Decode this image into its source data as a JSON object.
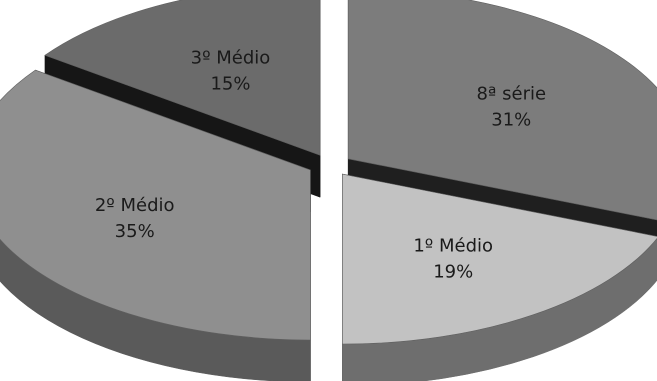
{
  "chart_data": {
    "type": "pie",
    "style": "3d exploded pie",
    "slices": [
      {
        "label": "8ª série",
        "value": 31,
        "percent_text": "31%",
        "color": "#7c7c7c",
        "side_color": "#4a4a4a",
        "inner_color": "#1f1f1f"
      },
      {
        "label": "1º Médio",
        "value": 19,
        "percent_text": "19%",
        "color": "#c2c2c2",
        "side_color": "#6e6e6e",
        "inner_color": "#2c2c2c"
      },
      {
        "label": "2º Médio",
        "value": 35,
        "percent_text": "35%",
        "color": "#8f8f8f",
        "side_color": "#5a5a5a",
        "inner_color": "#2a2a2a"
      },
      {
        "label": "3º Médio",
        "value": 15,
        "percent_text": "15%",
        "color": "#6b6b6b",
        "side_color": "#3a3a3a",
        "inner_color": "#161616"
      }
    ],
    "legend": "none",
    "data_labels": "inside slices"
  }
}
